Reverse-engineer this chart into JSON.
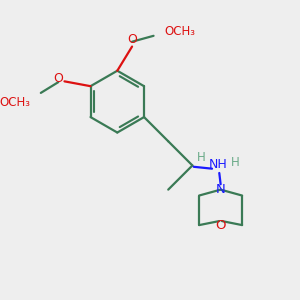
{
  "background_color": "#eeeeee",
  "bond_color": "#3a7a55",
  "nitrogen_color": "#1a1aff",
  "oxygen_color": "#dd1111",
  "hydrogen_color": "#6aaa88",
  "methyl_color": "#3a7a55",
  "figsize": [
    3.0,
    3.0
  ],
  "dpi": 100,
  "xlim": [
    0,
    10
  ],
  "ylim": [
    0,
    10
  ]
}
